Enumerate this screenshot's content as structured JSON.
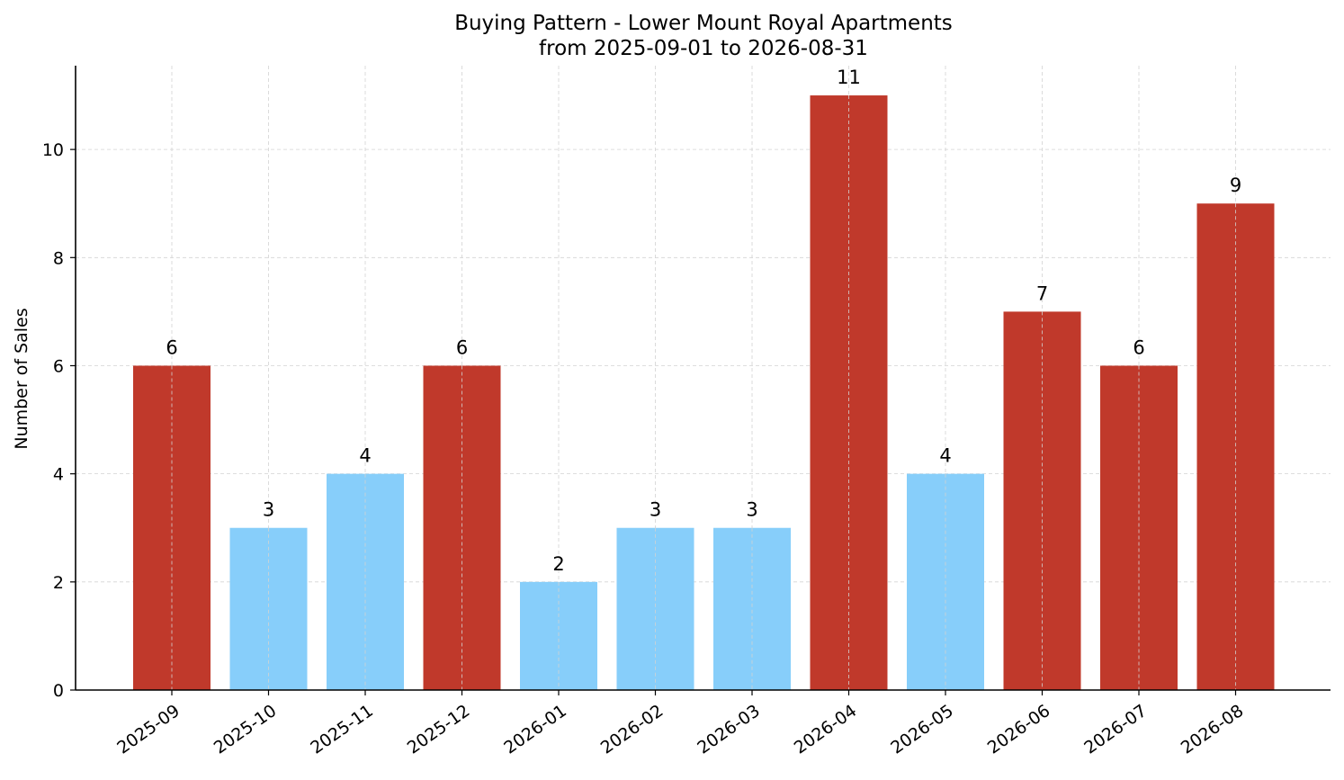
{
  "chart_data": {
    "type": "bar",
    "title": "Buying Pattern - Lower Mount Royal Apartments",
    "subtitle": "from 2025-09-01 to 2026-08-31",
    "xlabel": "",
    "ylabel": "Number of Sales",
    "categories": [
      "2025-09",
      "2025-10",
      "2025-11",
      "2025-12",
      "2026-01",
      "2026-02",
      "2026-03",
      "2026-04",
      "2026-05",
      "2026-06",
      "2026-07",
      "2026-08"
    ],
    "values": [
      6,
      3,
      4,
      6,
      2,
      3,
      3,
      11,
      4,
      7,
      6,
      9
    ],
    "bar_colors": [
      "#c0392b",
      "#87cefa",
      "#87cefa",
      "#c0392b",
      "#87cefa",
      "#87cefa",
      "#87cefa",
      "#c0392b",
      "#87cefa",
      "#c0392b",
      "#c0392b",
      "#c0392b"
    ],
    "yticks": [
      0,
      2,
      4,
      6,
      8,
      10
    ],
    "ylim": [
      0,
      11.55
    ],
    "grid": true,
    "data_labels": true
  }
}
